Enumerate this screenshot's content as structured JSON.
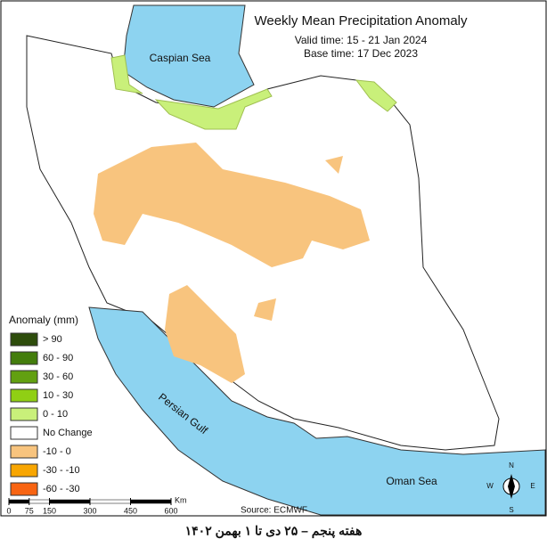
{
  "header": {
    "title": "Weekly Mean Precipitation Anomaly",
    "valid_time": "Valid time: 15 - 21 Jan 2024",
    "base_time": "Base time: 17 Dec 2023"
  },
  "seas": {
    "caspian": "Caspian Sea",
    "gulf": "Persian Gulf",
    "oman": "Oman Sea"
  },
  "legend": {
    "title": "Anomaly (mm)",
    "items": [
      {
        "label": "> 90",
        "color": "#2e4d0c"
      },
      {
        "label": "60 - 90",
        "color": "#437d0c"
      },
      {
        "label": "30 - 60",
        "color": "#62a011"
      },
      {
        "label": "10 - 30",
        "color": "#90cf14"
      },
      {
        "label": "0 - 10",
        "color": "#c9f07a"
      },
      {
        "label": "No Change",
        "color": "#ffffff"
      },
      {
        "label": "-10 - 0",
        "color": "#f8c47e"
      },
      {
        "label": "-30 - -10",
        "color": "#f8a602"
      },
      {
        "label": "-60 - -30",
        "color": "#f86412"
      }
    ]
  },
  "scale": {
    "ticks": [
      0,
      75,
      150,
      300,
      450,
      600
    ],
    "unit": "Km"
  },
  "source": "Source: ECMWF",
  "compass": {
    "n": "N",
    "e": "E",
    "s": "S",
    "w": "W"
  },
  "footer": "هفته پنجم – ۲۵ دی تا ۱ بهمن ۱۴۰۲"
}
